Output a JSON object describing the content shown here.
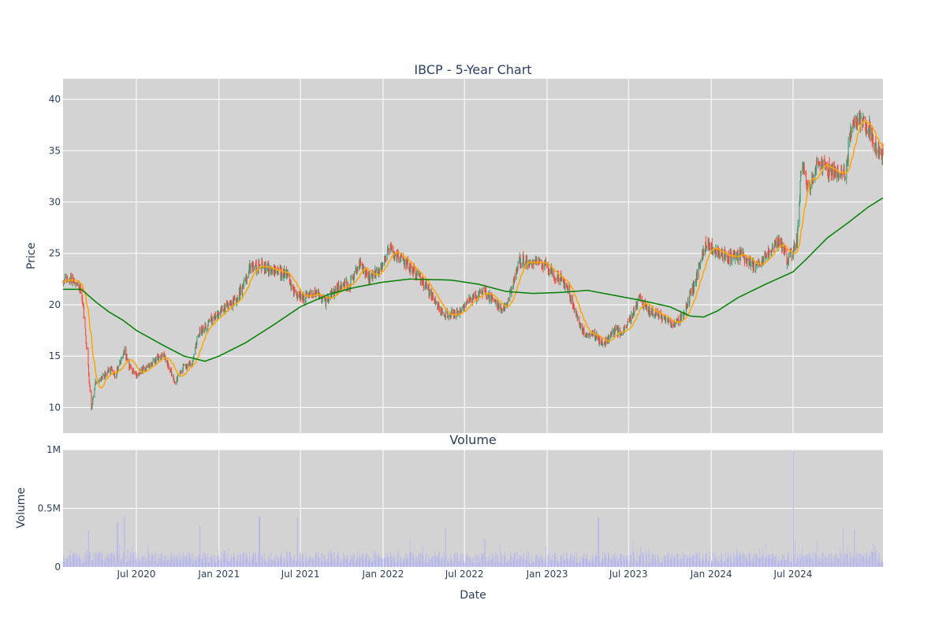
{
  "chart_data": [
    {
      "type": "candlestick",
      "title": "IBCP - 5-Year Chart",
      "ylabel": "Price",
      "ylim": [
        7.5,
        42
      ],
      "yticks": [
        10,
        15,
        20,
        25,
        30,
        35,
        40
      ],
      "xlim": [
        "2020-01-20",
        "2025-01-17"
      ],
      "grid": true,
      "colors": {
        "up": "#3d9970",
        "down": "#ff4136",
        "ma_short": "#ffa500",
        "ma_long": "#008000",
        "plot_bg": "#d3d3d3"
      },
      "price_anchors": [
        [
          "2020-01-20",
          22.3
        ],
        [
          "2020-02-10",
          22.5
        ],
        [
          "2020-02-25",
          22.0
        ],
        [
          "2020-03-05",
          19.5
        ],
        [
          "2020-03-15",
          14.5
        ],
        [
          "2020-03-23",
          9.8
        ],
        [
          "2020-04-01",
          12.5
        ],
        [
          "2020-04-15",
          12.8
        ],
        [
          "2020-05-01",
          13.8
        ],
        [
          "2020-05-15",
          13.2
        ],
        [
          "2020-06-05",
          15.5
        ],
        [
          "2020-06-15",
          14.0
        ],
        [
          "2020-07-01",
          13.2
        ],
        [
          "2020-08-01",
          14.3
        ],
        [
          "2020-09-01",
          15.0
        ],
        [
          "2020-09-25",
          12.5
        ],
        [
          "2020-10-15",
          14.0
        ],
        [
          "2020-11-01",
          14.2
        ],
        [
          "2020-11-15",
          17.0
        ],
        [
          "2020-12-15",
          18.5
        ],
        [
          "2021-01-15",
          19.8
        ],
        [
          "2021-02-10",
          20.5
        ],
        [
          "2021-03-10",
          23.5
        ],
        [
          "2021-04-01",
          23.8
        ],
        [
          "2021-05-01",
          23.3
        ],
        [
          "2021-06-01",
          23.0
        ],
        [
          "2021-06-20",
          21.0
        ],
        [
          "2021-07-10",
          20.6
        ],
        [
          "2021-08-01",
          21.3
        ],
        [
          "2021-08-25",
          20.2
        ],
        [
          "2021-09-25",
          21.8
        ],
        [
          "2021-10-20",
          22.0
        ],
        [
          "2021-11-10",
          24.0
        ],
        [
          "2021-12-01",
          22.8
        ],
        [
          "2021-12-20",
          23.2
        ],
        [
          "2022-01-15",
          25.5
        ],
        [
          "2022-02-10",
          24.5
        ],
        [
          "2022-03-15",
          23.0
        ],
        [
          "2022-04-10",
          21.5
        ],
        [
          "2022-05-15",
          19.0
        ],
        [
          "2022-06-20",
          19.2
        ],
        [
          "2022-07-15",
          20.5
        ],
        [
          "2022-08-10",
          21.3
        ],
        [
          "2022-09-01",
          20.5
        ],
        [
          "2022-09-25",
          19.3
        ],
        [
          "2022-10-15",
          21.5
        ],
        [
          "2022-11-01",
          24.3
        ],
        [
          "2022-11-20",
          24.0
        ],
        [
          "2022-12-15",
          24.3
        ],
        [
          "2023-01-15",
          23.0
        ],
        [
          "2023-02-15",
          21.8
        ],
        [
          "2023-03-10",
          18.5
        ],
        [
          "2023-03-25",
          17.2
        ],
        [
          "2023-04-20",
          17.0
        ],
        [
          "2023-05-05",
          16.0
        ],
        [
          "2023-06-01",
          17.5
        ],
        [
          "2023-06-20",
          17.3
        ],
        [
          "2023-07-25",
          20.5
        ],
        [
          "2023-08-15",
          19.5
        ],
        [
          "2023-09-15",
          18.7
        ],
        [
          "2023-10-10",
          18.0
        ],
        [
          "2023-10-30",
          19.0
        ],
        [
          "2023-11-25",
          22.0
        ],
        [
          "2023-12-20",
          26.0
        ],
        [
          "2024-01-15",
          25.2
        ],
        [
          "2024-02-10",
          24.5
        ],
        [
          "2024-03-10",
          24.8
        ],
        [
          "2024-04-10",
          23.5
        ],
        [
          "2024-05-10",
          25.5
        ],
        [
          "2024-06-01",
          26.0
        ],
        [
          "2024-06-20",
          24.2
        ],
        [
          "2024-07-10",
          26.5
        ],
        [
          "2024-07-20",
          33.5
        ],
        [
          "2024-08-05",
          31.5
        ],
        [
          "2024-08-25",
          34.0
        ],
        [
          "2024-09-15",
          33.0
        ],
        [
          "2024-10-10",
          33.0
        ],
        [
          "2024-10-25",
          32.8
        ],
        [
          "2024-11-08",
          37.5
        ],
        [
          "2024-12-01",
          38.0
        ],
        [
          "2024-12-20",
          37.0
        ],
        [
          "2025-01-01",
          35.0
        ],
        [
          "2025-01-17",
          34.6
        ]
      ],
      "ma_long_anchors": [
        [
          "2020-01-20",
          21.5
        ],
        [
          "2020-03-01",
          21.5
        ],
        [
          "2020-04-01",
          20.3
        ],
        [
          "2020-05-01",
          19.3
        ],
        [
          "2020-06-01",
          18.5
        ],
        [
          "2020-07-01",
          17.5
        ],
        [
          "2020-09-01",
          16.0
        ],
        [
          "2020-10-15",
          15.0
        ],
        [
          "2020-12-01",
          14.5
        ],
        [
          "2021-01-01",
          15.0
        ],
        [
          "2021-03-01",
          16.3
        ],
        [
          "2021-05-01",
          18.0
        ],
        [
          "2021-07-01",
          19.8
        ],
        [
          "2021-09-01",
          21.0
        ],
        [
          "2021-11-01",
          21.7
        ],
        [
          "2022-01-01",
          22.2
        ],
        [
          "2022-03-01",
          22.5
        ],
        [
          "2022-06-01",
          22.4
        ],
        [
          "2022-08-01",
          22.0
        ],
        [
          "2022-10-01",
          21.3
        ],
        [
          "2022-12-01",
          21.1
        ],
        [
          "2023-02-01",
          21.2
        ],
        [
          "2023-04-01",
          21.4
        ],
        [
          "2023-06-01",
          20.9
        ],
        [
          "2023-08-01",
          20.4
        ],
        [
          "2023-10-01",
          19.8
        ],
        [
          "2023-11-15",
          18.9
        ],
        [
          "2023-12-15",
          18.8
        ],
        [
          "2024-01-15",
          19.4
        ],
        [
          "2024-03-01",
          20.7
        ],
        [
          "2024-05-01",
          22.0
        ],
        [
          "2024-07-01",
          23.2
        ],
        [
          "2024-08-01",
          24.5
        ],
        [
          "2024-09-15",
          26.5
        ],
        [
          "2024-11-01",
          28.0
        ],
        [
          "2024-12-15",
          29.5
        ],
        [
          "2025-01-17",
          30.4
        ]
      ]
    },
    {
      "type": "bar",
      "title": "Volume",
      "ylabel": "Volume",
      "xlabel": "Date",
      "ylim": [
        0,
        1000000
      ],
      "yticks": [
        0,
        500000,
        1000000
      ],
      "ytick_labels": [
        "0",
        "0.5M",
        "1M"
      ],
      "xtick_dates": [
        "2020-07-01",
        "2021-01-01",
        "2021-07-01",
        "2022-01-01",
        "2022-07-01",
        "2023-01-01",
        "2023-07-01",
        "2024-01-01",
        "2024-07-01"
      ],
      "xtick_labels": [
        "Jul 2020",
        "Jan 2021",
        "Jul 2021",
        "Jan 2022",
        "Jul 2022",
        "Jan 2023",
        "Jul 2023",
        "Jan 2024",
        "Jul 2024"
      ],
      "grid": true,
      "colors": {
        "bar": "#b3b3f0",
        "plot_bg": "#d3d3d3"
      },
      "volume_baseline": 80000,
      "volume_spikes": [
        [
          "2020-03-16",
          310000
        ],
        [
          "2020-05-20",
          380000
        ],
        [
          "2020-06-05",
          430000
        ],
        [
          "2020-11-20",
          350000
        ],
        [
          "2021-04-01",
          430000
        ],
        [
          "2021-06-25",
          420000
        ],
        [
          "2022-05-20",
          330000
        ],
        [
          "2022-08-15",
          240000
        ],
        [
          "2023-04-25",
          420000
        ],
        [
          "2024-07-01",
          990000
        ],
        [
          "2024-10-20",
          330000
        ],
        [
          "2024-11-15",
          320000
        ]
      ]
    }
  ]
}
